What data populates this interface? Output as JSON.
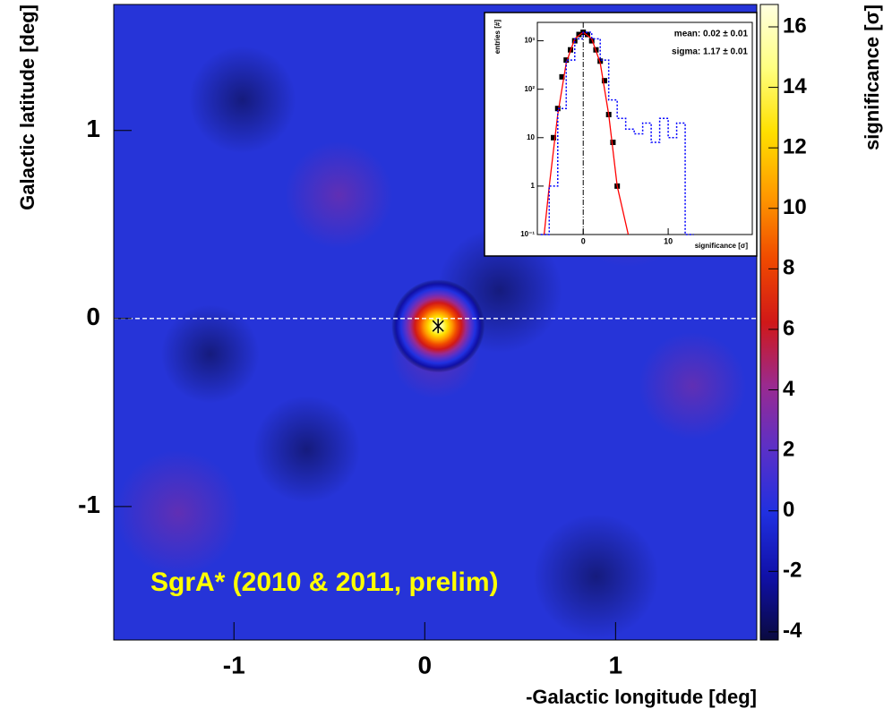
{
  "chart_data": [
    {
      "type": "heatmap",
      "xlabel": "-Galactic longitude [deg]",
      "ylabel": "Galactic latitude [deg]",
      "xlim": [
        -1.63,
        1.74
      ],
      "ylim": [
        -1.71,
        1.67
      ],
      "xticks": [
        -1,
        0,
        1
      ],
      "yticks": [
        -1,
        0,
        1
      ],
      "zlabel": "significance [σ]",
      "zlim": [
        -4.27,
        16.74
      ],
      "zticks": [
        -4,
        -2,
        0,
        2,
        4,
        6,
        8,
        10,
        12,
        14,
        16
      ],
      "colormap": [
        "#0a0a40",
        "#1010a8",
        "#2030e0",
        "#5a30c8",
        "#9a2a90",
        "#d01818",
        "#f04a00",
        "#ff9a00",
        "#ffe000",
        "#ffff80",
        "#ffffe0"
      ],
      "background": "#2634d8",
      "hline": 0,
      "marker": {
        "x": 0.07,
        "y": -0.04
      },
      "annotation": "SgrA* (2010 & 2011, prelim)"
    },
    {
      "type": "line",
      "xlabel": "significance [σ]",
      "ylabel": "entries [#]",
      "xlim": [
        -5.4,
        19.9
      ],
      "ylim": [
        0.1,
        2400
      ],
      "ylog": true,
      "xticks": [
        0,
        10
      ],
      "yticks": [
        {
          "value": 0.1,
          "label": "10⁻¹"
        },
        1,
        10,
        {
          "value": 100,
          "label": "10²"
        },
        {
          "value": 1000,
          "label": "10³"
        }
      ],
      "vline": 0,
      "stats": [
        "mean: 0.02 ± 0.01",
        "sigma: 1.17 ± 0.01"
      ],
      "series": [
        {
          "style": "points",
          "color": "#000000",
          "x": [
            -3.5,
            -3,
            -2.5,
            -2,
            -1.5,
            -1,
            -0.5,
            0,
            0.5,
            1,
            1.5,
            2,
            2.5,
            3,
            3.5,
            4
          ],
          "values": [
            10,
            40,
            180,
            400,
            650,
            1000,
            1350,
            1500,
            1350,
            1000,
            650,
            380,
            150,
            30,
            8,
            1
          ]
        },
        {
          "style": "line",
          "color": "#ff0000",
          "x": [
            -4.6,
            -4,
            -3,
            -2,
            -1,
            0,
            1,
            2,
            3,
            4,
            5.3
          ],
          "values": [
            0.1,
            1,
            30,
            350,
            1100,
            1500,
            1100,
            350,
            30,
            1,
            0.1
          ]
        },
        {
          "style": "step",
          "color": "#0000ff",
          "x": [
            -5,
            -4,
            -3,
            -2,
            -1,
            0,
            1,
            2,
            3,
            4,
            5,
            6,
            7,
            8,
            9,
            10,
            11,
            12,
            13
          ],
          "values": [
            0.1,
            1,
            40,
            400,
            1100,
            1500,
            1100,
            400,
            60,
            25,
            15,
            12,
            20,
            8,
            25,
            10,
            20,
            0.1,
            0.1
          ]
        }
      ]
    }
  ]
}
